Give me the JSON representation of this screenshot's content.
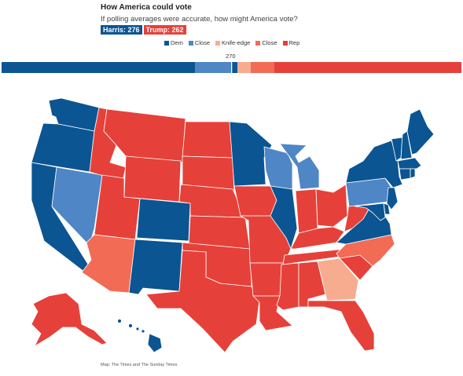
{
  "header": {
    "title": "How America could vote",
    "subtitle": "If polling averages were accurate, how might America vote?",
    "harris_label": "Harris: 276",
    "trump_label": "Trump: 262"
  },
  "legend": {
    "items": [
      {
        "label": "Dem",
        "color": "#0b5592"
      },
      {
        "label": "Close",
        "color": "#4f86c6"
      },
      {
        "label": "Knife-edge",
        "color": "#f7ac90"
      },
      {
        "label": "Close",
        "color": "#f26b55"
      },
      {
        "label": "Rep",
        "color": "#e5413a"
      }
    ]
  },
  "threshold_label": "270",
  "electoral_bar": {
    "total": 538,
    "segments": [
      {
        "category": "Dem",
        "votes": 226,
        "color": "#0b5592"
      },
      {
        "category": "Close",
        "votes": 44,
        "color": "#4f86c6"
      },
      {
        "category": "Dem",
        "votes": 6,
        "color": "#0b5592"
      },
      {
        "category": "Knife-edge",
        "votes": 16,
        "color": "#f7ac90"
      },
      {
        "category": "Close",
        "votes": 27,
        "color": "#f26b55"
      },
      {
        "category": "Rep",
        "votes": 219,
        "color": "#e5413a"
      }
    ]
  },
  "colors": {
    "dem": "#0b5592",
    "dem_close": "#4f86c6",
    "knife_edge": "#f7ac90",
    "rep_close": "#f26b55",
    "rep": "#e5413a"
  },
  "map": {
    "state_categories": {
      "WA": "dem",
      "OR": "dem",
      "CA": "dem",
      "NV": "dem_close",
      "ID": "rep",
      "MT": "rep",
      "WY": "rep",
      "UT": "rep",
      "AZ": "rep_close",
      "CO": "dem",
      "NM": "dem",
      "ND": "rep",
      "SD": "rep",
      "NE": "rep",
      "KS": "rep",
      "OK": "rep",
      "TX": "rep",
      "MN": "dem",
      "IA": "rep",
      "MO": "rep",
      "AR": "rep",
      "LA": "rep",
      "WI": "dem_close",
      "IL": "dem",
      "MI": "dem_close",
      "IN": "rep",
      "OH": "rep",
      "KY": "rep",
      "TN": "rep",
      "MS": "rep",
      "AL": "rep",
      "GA": "knife_edge",
      "FL": "rep",
      "SC": "rep",
      "NC": "rep_close",
      "VA": "dem",
      "WV": "rep",
      "PA": "dem_close",
      "NY": "dem",
      "VT": "dem",
      "NH": "dem",
      "ME": "dem",
      "MA": "dem",
      "CT": "dem",
      "RI": "dem",
      "NJ": "dem",
      "DE": "dem",
      "MD": "dem",
      "AK": "rep",
      "HI": "dem"
    }
  },
  "credit": "Map: The Times and The Sunday Times"
}
